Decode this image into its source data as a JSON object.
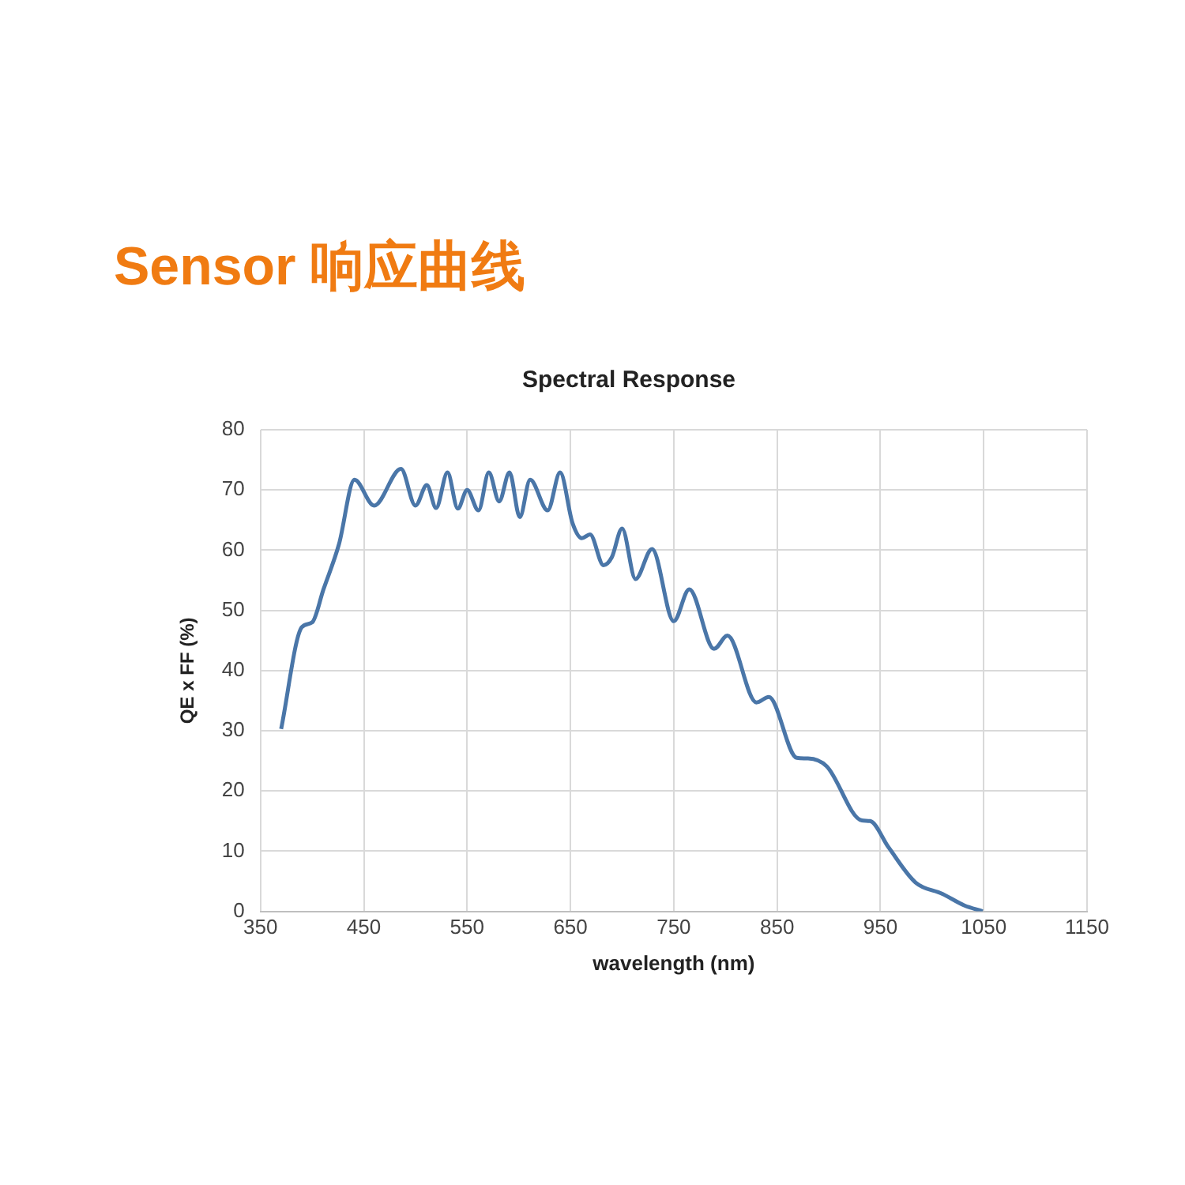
{
  "chart_data": {
    "type": "line",
    "title": "Sensor 响应曲线",
    "subtitle": "Spectral Response",
    "xlabel": "wavelength (nm)",
    "ylabel": "QE x FF (%)",
    "series": [
      {
        "color": "#4a76a8",
        "x": [
          370,
          390,
          400,
          411,
          426,
          441,
          460,
          486,
          500,
          511,
          520,
          531,
          541,
          550,
          561,
          571,
          581,
          591,
          601,
          611,
          628,
          640,
          652,
          661,
          669,
          682,
          690,
          700,
          713,
          729,
          750,
          765,
          789,
          802,
          830,
          842,
          869,
          880,
          898,
          932,
          940,
          958,
          984,
          1010,
          1031,
          1049
        ],
        "values": [
          30.3,
          47.2,
          48,
          53.5,
          61,
          71.7,
          67.4,
          73.5,
          67.4,
          70.8,
          67,
          72.9,
          66.9,
          70,
          66.6,
          72.9,
          68.1,
          72.9,
          65.5,
          71.7,
          66.6,
          72.9,
          64.5,
          62,
          62.6,
          57.5,
          58.8,
          63.6,
          55.2,
          60.2,
          48.2,
          53.5,
          43.6,
          45.8,
          34.7,
          35.6,
          25.5,
          25.4,
          24.1,
          15.1,
          15,
          10.6,
          4.8,
          2.9,
          1,
          0
        ]
      }
    ],
    "xlim": [
      350,
      1150
    ],
    "xticks": [
      350,
      450,
      550,
      650,
      750,
      850,
      950,
      1050,
      1150
    ],
    "ylim": [
      0,
      80
    ],
    "yticks": [
      0,
      10,
      20,
      30,
      40,
      50,
      60,
      70,
      80
    ],
    "grid": true,
    "legend": false,
    "marker": "none",
    "line_style": "solid"
  }
}
